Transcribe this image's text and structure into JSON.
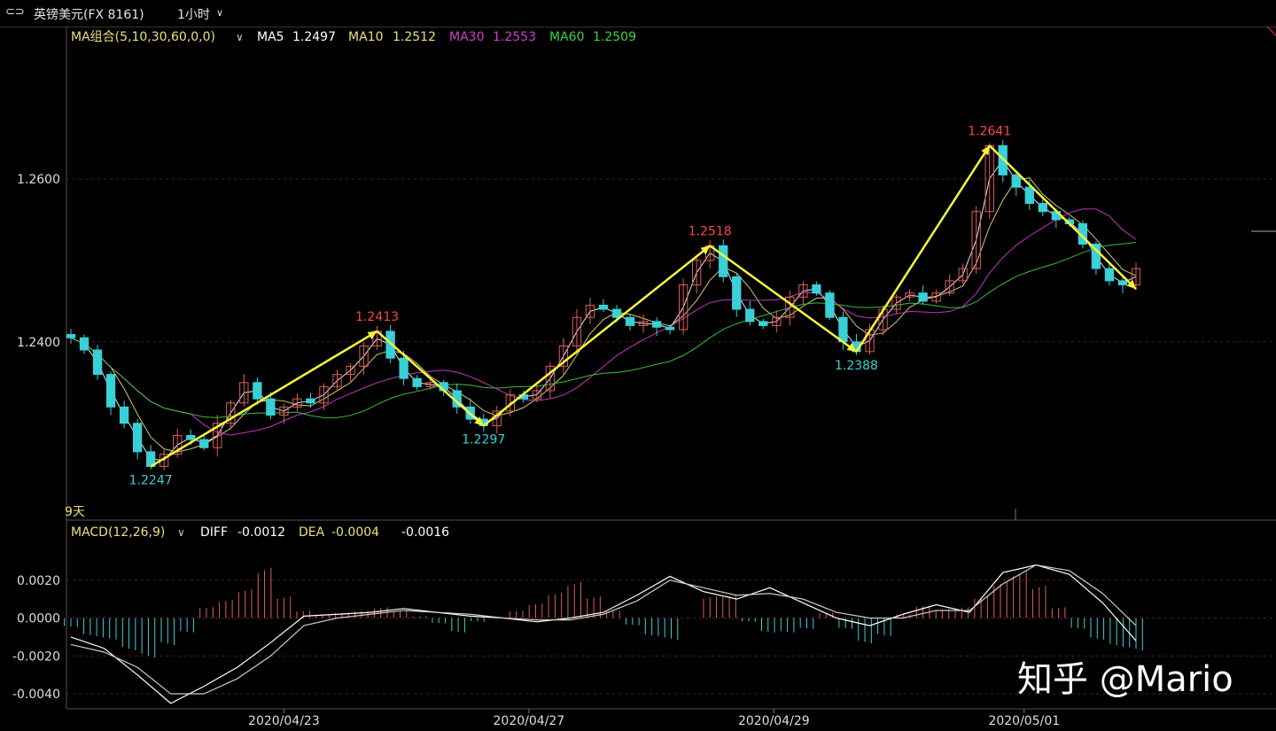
{
  "window": {
    "symbol": "英镑美元(FX 8161)",
    "period": "1小时"
  },
  "colors": {
    "background": "#000000",
    "grid": "#5a1a1a",
    "candle_up": "#e05c5c",
    "candle_down": "#39d0d8",
    "ma5": "#ffffff",
    "ma10": "#e8e07a",
    "ma30": "#d43cd4",
    "ma60": "#3cd43c",
    "zigzag": "#f5f53c",
    "high_label": "#ff4444",
    "low_label": "#39d0d8",
    "diff_line": "#ffffff",
    "dea_line": "#cccccc"
  },
  "chart_data": [
    {
      "type": "candlestick",
      "name": "main",
      "legend": {
        "group": "MA组合(5,10,30,60,0,0)",
        "ma5": "MA5",
        "ma5_value": "1.2497",
        "ma10": "MA10",
        "ma10_value": "1.2512",
        "ma30": "MA30",
        "ma30_value": "1.2553",
        "ma60": "MA60",
        "ma60_value": "1.2509"
      },
      "y_ticks": [
        "1.2600",
        "1.2400"
      ],
      "ylim": [
        1.2205,
        1.276
      ],
      "x_ticks": [
        "2020/04/23",
        "2020/04/27",
        "2020/04/29",
        "2020/05/01"
      ],
      "span_label": "9天",
      "swing_points": [
        {
          "label": "1.2247",
          "value": 1.2247,
          "kind": "low"
        },
        {
          "label": "1.2413",
          "value": 1.2413,
          "kind": "high"
        },
        {
          "label": "1.2297",
          "value": 1.2297,
          "kind": "low"
        },
        {
          "label": "1.2518",
          "value": 1.2518,
          "kind": "high"
        },
        {
          "label": "1.2388",
          "value": 1.2388,
          "kind": "low"
        },
        {
          "label": "1.2641",
          "value": 1.2641,
          "kind": "high"
        },
        {
          "value": 1.2465,
          "kind": "end"
        }
      ],
      "close_path": [
        1.2405,
        1.239,
        1.236,
        1.232,
        1.23,
        1.2265,
        1.2247,
        1.2262,
        1.2285,
        1.228,
        1.227,
        1.23,
        1.2325,
        1.235,
        1.233,
        1.231,
        1.232,
        1.233,
        1.2325,
        1.2345,
        1.236,
        1.237,
        1.2395,
        1.2413,
        1.238,
        1.2355,
        1.2345,
        1.235,
        1.234,
        1.232,
        1.2305,
        1.2297,
        1.2315,
        1.2335,
        1.233,
        1.234,
        1.237,
        1.2395,
        1.243,
        1.2445,
        1.244,
        1.243,
        1.242,
        1.2425,
        1.2418,
        1.2415,
        1.247,
        1.25,
        1.2518,
        1.248,
        1.244,
        1.2425,
        1.242,
        1.243,
        1.2455,
        1.247,
        1.246,
        1.243,
        1.24,
        1.2388,
        1.2415,
        1.244,
        1.2455,
        1.246,
        1.245,
        1.246,
        1.2475,
        1.249,
        1.256,
        1.2641,
        1.2605,
        1.259,
        1.257,
        1.256,
        1.255,
        1.2545,
        1.252,
        1.249,
        1.2475,
        1.247,
        1.249
      ]
    },
    {
      "type": "macd",
      "name": "macd",
      "legend": {
        "title": "MACD(12,26,9)",
        "diff_label": "DIFF",
        "diff_value": "-0.0012",
        "dea_label": "DEA",
        "dea_value": "-0.0004",
        "macd_value": "-0.0016"
      },
      "y_ticks": [
        "0.0020",
        "0.0000",
        "-0.0020",
        "-0.0040"
      ],
      "ylim": [
        -0.0047,
        0.004
      ],
      "diff": [
        -0.001,
        -0.0016,
        -0.003,
        -0.0045,
        -0.0036,
        -0.0026,
        -0.0013,
        0.0001,
        0.0002,
        0.0003,
        0.0005,
        0.0003,
        0.0001,
        0.0,
        -0.0002,
        0.0,
        0.0003,
        0.0012,
        0.0022,
        0.0014,
        0.001,
        0.0016,
        0.0008,
        0.0,
        -0.0004,
        0.0002,
        0.0007,
        0.0003,
        0.0024,
        0.0028,
        0.0023,
        0.0008,
        -0.0012
      ],
      "dea": [
        -0.0014,
        -0.0018,
        -0.0026,
        -0.004,
        -0.004,
        -0.0032,
        -0.002,
        -0.0004,
        0.0,
        0.0002,
        0.0004,
        0.0003,
        0.0002,
        0.0,
        -0.0001,
        -0.0001,
        0.0002,
        0.0009,
        0.002,
        0.0016,
        0.0012,
        0.0013,
        0.001,
        0.0003,
        0.0,
        0.0,
        0.0004,
        0.0004,
        0.0018,
        0.0028,
        0.0025,
        0.0013,
        -0.0004
      ],
      "histogram": [
        -0.0005,
        -0.001,
        -0.0012,
        -0.0018,
        -0.0022,
        -0.0015,
        -0.0008,
        0.0006,
        0.001,
        0.0016,
        0.0028,
        0.0012,
        0.0004,
        0.0002,
        0.0003,
        0.0004,
        0.0006,
        0.0004,
        0.0001,
        -0.0003,
        -0.0008,
        -0.0002,
        0.0,
        0.0004,
        0.0008,
        0.0014,
        0.002,
        0.0012,
        0.0004,
        -0.0004,
        -0.001,
        -0.0012,
        0.0,
        0.0012,
        0.0013,
        -0.0002,
        -0.0008,
        -0.0008,
        -0.0006,
        0.0003,
        -0.0006,
        -0.0014,
        -0.001,
        0.0002,
        0.0007,
        0.0005,
        0.0006,
        0.0012,
        0.002,
        0.0026,
        0.0018,
        0.0006,
        -0.0006,
        -0.0012,
        -0.0016,
        -0.0018
      ]
    }
  ],
  "watermark": {
    "text": "知乎 @Mario"
  }
}
